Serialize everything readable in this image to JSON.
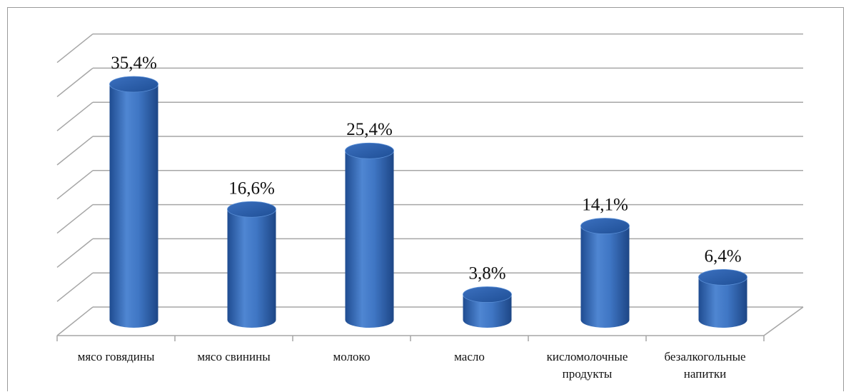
{
  "chart_data": {
    "type": "bar",
    "style": "3d-cylinder",
    "categories": [
      [
        "мясо говядины"
      ],
      [
        "мясо свинины"
      ],
      [
        "молоко"
      ],
      [
        "масло"
      ],
      [
        "кисломолочные",
        "продукты"
      ],
      [
        "безалкогольные",
        "напитки"
      ]
    ],
    "values": [
      35.4,
      16.6,
      25.4,
      3.8,
      14.1,
      6.4
    ],
    "data_labels": [
      "35,4%",
      "16,6%",
      "25,4%",
      "3,8%",
      "14,1%",
      "6,4%"
    ],
    "ylim": [
      0,
      40
    ],
    "gridlines": 9,
    "grid": true,
    "legend": "none",
    "colors": {
      "bar": "#3f76c4",
      "bar_dark": "#1f4c91",
      "top": "#2e60ad",
      "grid": "#a6a6a6"
    }
  }
}
